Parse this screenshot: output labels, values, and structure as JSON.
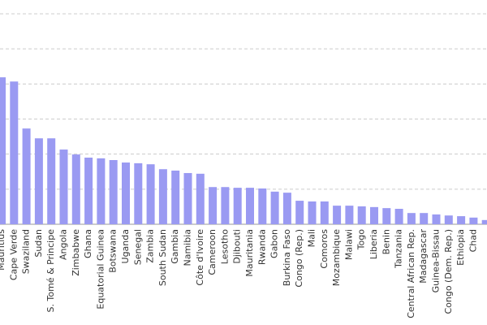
{
  "chart_data": {
    "type": "bar",
    "categories": [
      "Mauritius",
      "Cape Verde",
      "Swaziland",
      "Sudan",
      "S. Tomé & Principe",
      "Angola",
      "Zimbabwe",
      "Ghana",
      "Equatorial Guinea",
      "Botswana",
      "Uganda",
      "Senegal",
      "Zambia",
      "South Sudan",
      "Gambia",
      "Namibia",
      "Côte d'Ivoire",
      "Cameroon",
      "Lesotho",
      "Djibouti",
      "Mauritania",
      "Rwanda",
      "Gabon",
      "Burkina Faso",
      "Congo (Rep.)",
      "Mali",
      "Comoros",
      "Mozambique",
      "Malawi",
      "Togo",
      "Liberia",
      "Benin",
      "Tanzania",
      "Central African Rep.",
      "Madagascar",
      "Guinea-Bissau",
      "Congo (Dem. Rep.)",
      "Ethiopia",
      "Chad",
      null
    ],
    "values": [
      4.19,
      4.07,
      2.73,
      2.45,
      2.45,
      2.13,
      1.99,
      1.9,
      1.88,
      1.83,
      1.76,
      1.74,
      1.71,
      1.57,
      1.53,
      1.46,
      1.44,
      1.06,
      1.06,
      1.04,
      1.04,
      1.02,
      0.93,
      0.9,
      0.67,
      0.65,
      0.65,
      0.53,
      0.53,
      0.51,
      0.49,
      0.46,
      0.44,
      0.32,
      0.32,
      0.28,
      0.25,
      0.23,
      0.19,
      0.12
    ],
    "color": "#9a9af2",
    "ylim": [
      0,
      6
    ],
    "yticks": [
      0,
      1,
      2,
      3,
      4,
      5,
      6
    ],
    "grid": true
  }
}
